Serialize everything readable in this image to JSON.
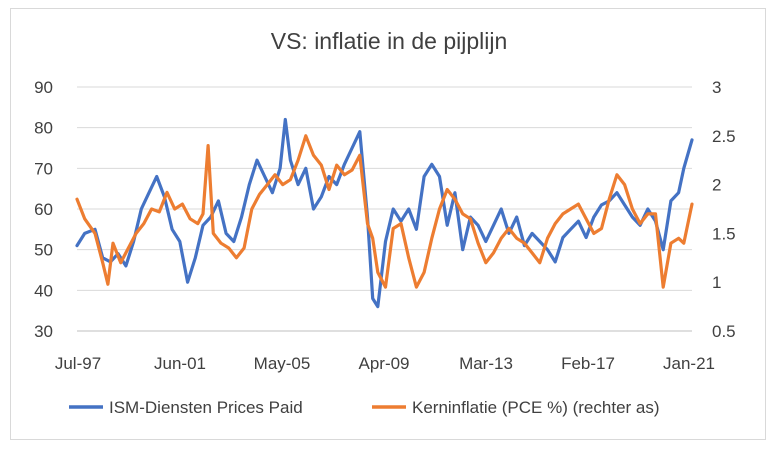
{
  "chart_data": {
    "type": "line",
    "title": "VS: inflatie in de pijplijn",
    "xlabel": "",
    "ylabel": "",
    "x_tick_labels": [
      "Jul-97",
      "Jun-01",
      "May-05",
      "Apr-09",
      "Mar-13",
      "Feb-17",
      "Jan-21"
    ],
    "x_range": [
      1997.5,
      2021.42
    ],
    "ylim_left": [
      30,
      90
    ],
    "yticks_left": [
      "30",
      "40",
      "50",
      "60",
      "70",
      "80",
      "90"
    ],
    "ylim_right": [
      0.5,
      3
    ],
    "yticks_right": [
      "0.5",
      "1",
      "1.5",
      "2",
      "2.5",
      "3"
    ],
    "gridlines": "horizontal",
    "legend_position": "bottom",
    "series": [
      {
        "name": "ISM-Diensten Prices Paid",
        "axis": "left",
        "color": "#4472c4",
        "points": [
          [
            1997.5,
            51
          ],
          [
            1997.8,
            54
          ],
          [
            1998.2,
            55
          ],
          [
            1998.5,
            48
          ],
          [
            1998.8,
            47
          ],
          [
            1999.1,
            49
          ],
          [
            1999.4,
            46
          ],
          [
            1999.7,
            52
          ],
          [
            2000.0,
            60
          ],
          [
            2000.3,
            64
          ],
          [
            2000.6,
            68
          ],
          [
            2000.9,
            63
          ],
          [
            2001.2,
            55
          ],
          [
            2001.5,
            52
          ],
          [
            2001.8,
            42
          ],
          [
            2002.1,
            48
          ],
          [
            2002.4,
            56
          ],
          [
            2002.7,
            58
          ],
          [
            2003.0,
            62
          ],
          [
            2003.3,
            54
          ],
          [
            2003.6,
            52
          ],
          [
            2003.9,
            58
          ],
          [
            2004.2,
            66
          ],
          [
            2004.5,
            72
          ],
          [
            2004.8,
            68
          ],
          [
            2005.1,
            64
          ],
          [
            2005.4,
            70
          ],
          [
            2005.6,
            82
          ],
          [
            2005.8,
            72
          ],
          [
            2006.1,
            66
          ],
          [
            2006.4,
            70
          ],
          [
            2006.7,
            60
          ],
          [
            2007.0,
            63
          ],
          [
            2007.3,
            68
          ],
          [
            2007.6,
            66
          ],
          [
            2007.9,
            71
          ],
          [
            2008.2,
            75
          ],
          [
            2008.5,
            79
          ],
          [
            2008.8,
            58
          ],
          [
            2009.0,
            38
          ],
          [
            2009.2,
            36
          ],
          [
            2009.5,
            52
          ],
          [
            2009.8,
            60
          ],
          [
            2010.1,
            57
          ],
          [
            2010.4,
            60
          ],
          [
            2010.7,
            55
          ],
          [
            2011.0,
            68
          ],
          [
            2011.3,
            71
          ],
          [
            2011.6,
            68
          ],
          [
            2011.9,
            56
          ],
          [
            2012.2,
            64
          ],
          [
            2012.5,
            50
          ],
          [
            2012.8,
            58
          ],
          [
            2013.1,
            56
          ],
          [
            2013.4,
            52
          ],
          [
            2013.7,
            56
          ],
          [
            2014.0,
            60
          ],
          [
            2014.3,
            54
          ],
          [
            2014.6,
            58
          ],
          [
            2014.9,
            51
          ],
          [
            2015.2,
            54
          ],
          [
            2015.5,
            52
          ],
          [
            2015.8,
            50
          ],
          [
            2016.1,
            47
          ],
          [
            2016.4,
            53
          ],
          [
            2016.7,
            55
          ],
          [
            2017.0,
            57
          ],
          [
            2017.3,
            53
          ],
          [
            2017.6,
            58
          ],
          [
            2017.9,
            61
          ],
          [
            2018.2,
            62
          ],
          [
            2018.5,
            64
          ],
          [
            2018.8,
            61
          ],
          [
            2019.1,
            58
          ],
          [
            2019.4,
            56
          ],
          [
            2019.7,
            60
          ],
          [
            2020.0,
            57
          ],
          [
            2020.3,
            50
          ],
          [
            2020.6,
            62
          ],
          [
            2020.9,
            64
          ],
          [
            2021.1,
            70
          ],
          [
            2021.42,
            77
          ]
        ]
      },
      {
        "name": "Kerninflatie (PCE %) (rechter as)",
        "axis": "right",
        "color": "#ed7d31",
        "points": [
          [
            1997.5,
            1.85
          ],
          [
            1997.8,
            1.65
          ],
          [
            1998.2,
            1.5
          ],
          [
            1998.5,
            1.2
          ],
          [
            1998.7,
            0.98
          ],
          [
            1998.9,
            1.4
          ],
          [
            1999.2,
            1.2
          ],
          [
            1999.5,
            1.35
          ],
          [
            1999.8,
            1.5
          ],
          [
            2000.1,
            1.6
          ],
          [
            2000.4,
            1.75
          ],
          [
            2000.7,
            1.72
          ],
          [
            2001.0,
            1.92
          ],
          [
            2001.3,
            1.75
          ],
          [
            2001.6,
            1.8
          ],
          [
            2001.9,
            1.65
          ],
          [
            2002.2,
            1.6
          ],
          [
            2002.4,
            1.7
          ],
          [
            2002.6,
            2.4
          ],
          [
            2002.8,
            1.5
          ],
          [
            2003.1,
            1.4
          ],
          [
            2003.4,
            1.35
          ],
          [
            2003.7,
            1.25
          ],
          [
            2004.0,
            1.35
          ],
          [
            2004.3,
            1.75
          ],
          [
            2004.6,
            1.9
          ],
          [
            2004.9,
            2.0
          ],
          [
            2005.2,
            2.1
          ],
          [
            2005.5,
            2.0
          ],
          [
            2005.8,
            2.05
          ],
          [
            2006.1,
            2.25
          ],
          [
            2006.4,
            2.5
          ],
          [
            2006.7,
            2.3
          ],
          [
            2007.0,
            2.2
          ],
          [
            2007.3,
            1.95
          ],
          [
            2007.6,
            2.2
          ],
          [
            2007.9,
            2.1
          ],
          [
            2008.2,
            2.15
          ],
          [
            2008.5,
            2.3
          ],
          [
            2008.8,
            1.6
          ],
          [
            2009.0,
            1.45
          ],
          [
            2009.2,
            1.1
          ],
          [
            2009.5,
            0.95
          ],
          [
            2009.8,
            1.55
          ],
          [
            2010.1,
            1.6
          ],
          [
            2010.4,
            1.25
          ],
          [
            2010.7,
            0.95
          ],
          [
            2011.0,
            1.1
          ],
          [
            2011.3,
            1.45
          ],
          [
            2011.6,
            1.75
          ],
          [
            2011.9,
            1.95
          ],
          [
            2012.2,
            1.85
          ],
          [
            2012.5,
            1.7
          ],
          [
            2012.8,
            1.65
          ],
          [
            2013.1,
            1.4
          ],
          [
            2013.4,
            1.2
          ],
          [
            2013.7,
            1.3
          ],
          [
            2014.0,
            1.45
          ],
          [
            2014.3,
            1.55
          ],
          [
            2014.6,
            1.45
          ],
          [
            2014.9,
            1.4
          ],
          [
            2015.2,
            1.3
          ],
          [
            2015.5,
            1.2
          ],
          [
            2015.8,
            1.45
          ],
          [
            2016.1,
            1.6
          ],
          [
            2016.4,
            1.7
          ],
          [
            2016.7,
            1.75
          ],
          [
            2017.0,
            1.8
          ],
          [
            2017.3,
            1.65
          ],
          [
            2017.6,
            1.5
          ],
          [
            2017.9,
            1.55
          ],
          [
            2018.2,
            1.85
          ],
          [
            2018.5,
            2.1
          ],
          [
            2018.8,
            2.0
          ],
          [
            2019.1,
            1.75
          ],
          [
            2019.4,
            1.6
          ],
          [
            2019.7,
            1.7
          ],
          [
            2020.0,
            1.7
          ],
          [
            2020.3,
            0.95
          ],
          [
            2020.6,
            1.4
          ],
          [
            2020.9,
            1.45
          ],
          [
            2021.1,
            1.4
          ],
          [
            2021.42,
            1.8
          ]
        ]
      }
    ]
  }
}
